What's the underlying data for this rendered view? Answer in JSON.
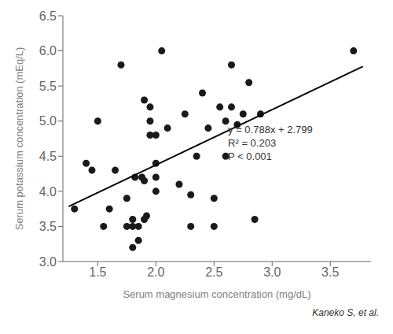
{
  "chart_data": {
    "type": "scatter",
    "xlabel": "Serum magnesium concentration (mg/dL)",
    "ylabel": "Serum potassium concentration (mEq/L)",
    "series": [
      {
        "type": "scatter",
        "color": "#1a1a1a",
        "x": [
          1.3,
          1.4,
          1.45,
          1.5,
          1.55,
          1.6,
          1.65,
          1.7,
          1.75,
          1.75,
          1.8,
          1.8,
          1.8,
          1.82,
          1.85,
          1.85,
          1.88,
          1.9,
          1.9,
          1.9,
          1.92,
          1.95,
          1.95,
          1.95,
          2.0,
          2.0,
          2.0,
          2.0,
          2.05,
          2.1,
          2.2,
          2.25,
          2.3,
          2.3,
          2.35,
          2.4,
          2.45,
          2.5,
          2.5,
          2.55,
          2.6,
          2.6,
          2.65,
          2.65,
          2.7,
          2.75,
          2.8,
          2.85,
          2.9,
          3.7
        ],
        "values": [
          3.75,
          4.4,
          4.3,
          5.0,
          3.5,
          3.75,
          4.3,
          5.8,
          3.5,
          3.9,
          3.2,
          3.5,
          3.6,
          4.2,
          3.3,
          3.5,
          4.2,
          5.3,
          3.6,
          4.15,
          3.65,
          5.2,
          5.0,
          4.8,
          4.4,
          4.8,
          4.2,
          4.0,
          6.0,
          4.9,
          4.1,
          5.1,
          3.5,
          3.95,
          4.5,
          5.4,
          4.9,
          3.5,
          3.9,
          5.2,
          5.0,
          4.5,
          5.8,
          5.2,
          4.95,
          5.1,
          5.55,
          3.6,
          5.1,
          6.0
        ]
      },
      {
        "type": "line",
        "color": "#000000",
        "x": [
          1.25,
          3.78
        ],
        "values": [
          3.784,
          5.77764
        ]
      }
    ],
    "xlim": [
      1.2,
      3.85
    ],
    "ylim": [
      3.0,
      6.5
    ],
    "xticks": [
      1.5,
      {
        "value": 2.0,
        "label": "2.0"
      },
      2.5,
      {
        "value": 3.0,
        "label": "3.0"
      },
      3.5
    ],
    "yticks": [
      {
        "value": 3.0,
        "label": "3.0"
      },
      3.5,
      {
        "value": 4.0,
        "label": "4.0"
      },
      4.5,
      {
        "value": 5.0,
        "label": "5.0"
      },
      5.5,
      {
        "value": 6.0,
        "label": "6.0"
      },
      6.5
    ],
    "grid": false,
    "annotations": [
      {
        "text": "y = 0.788x + 2.799\nR² = 0.203\nP < 0.001",
        "x": 2.62,
        "y": 4.45
      },
      {
        "text": "Kaneko S, et al."
      }
    ]
  }
}
